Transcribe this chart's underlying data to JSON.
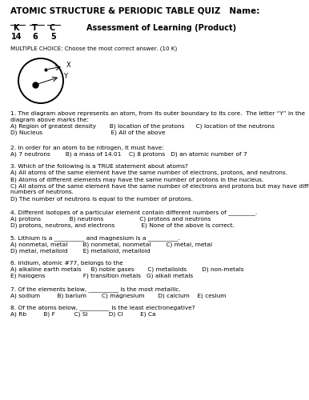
{
  "title": "ATOMIC STRUCTURE & PERIODIC TABLE QUIZ   Name:",
  "mc_header": "MULTIPLE CHOICE: Choose the most correct answer. (10 K)",
  "bg_color": "#ffffff",
  "text_color": "#000000",
  "font_size_title": 7.5,
  "font_size_subtitle": 7.0,
  "font_size_body": 5.3,
  "font_size_mc": 5.1,
  "lm": 13,
  "q1": "1. The diagram above represents an atom, from its outer boundary to its core.  The letter “Y” in the\ndiagram above marks the:\nA) Region of greatest density       B) location of the protons      C) location of the neutrons\nD) Nucleus                                    E) All of the above",
  "q2": "2. In order for an atom to be nitrogen, it must have:\nA) 7 neutrons        B) a mass of 14.01    C) 8 protons   D) an atomic number of 7",
  "q3": "3. Which of the following is a TRUE statement about atoms?\nA) All atoms of the same element have the same number of electrons, protons, and neutrons.\nB) Atoms of different elements may have the same number of protons in the nucleus.\nC) All atoms of the same element have the same number of electrons and protons but may have different\nnumbers of neutrons.\nD) The number of neutrons is equal to the number of protons.",
  "q4": "4. Different isotopes of a particular element contain different numbers of _________.\nA) protons               B) neutrons                   C) protons and neutrons\nD) protons, neutrons, and electrons              E) None of the above is correct.",
  "q5": "5. Lithium is a __________ and magnesium is a __________.\nA) nonmetal, metal        B) nonmetal, nonmetal        C) metal, metal\nD) metal, metalloid        E) metalloid, metalloid",
  "q6": "6. Iridium, atomic #77, belongs to the\nA) alkaline earth metals     B) noble gases       C) metalloids        D) non-metals\nE) halogens                    F) transition metals   G) alkali metals",
  "q7": "7. Of the elements below, __________ is the most metallic.\nA) sodium         B) barium        C) magnesium       D) calcium    E) cesium",
  "q8": "8. Of the atoms below, __________ is the least electronegative?\nA) Rb         B) F          C) Si           D) Cl         E) Ca"
}
